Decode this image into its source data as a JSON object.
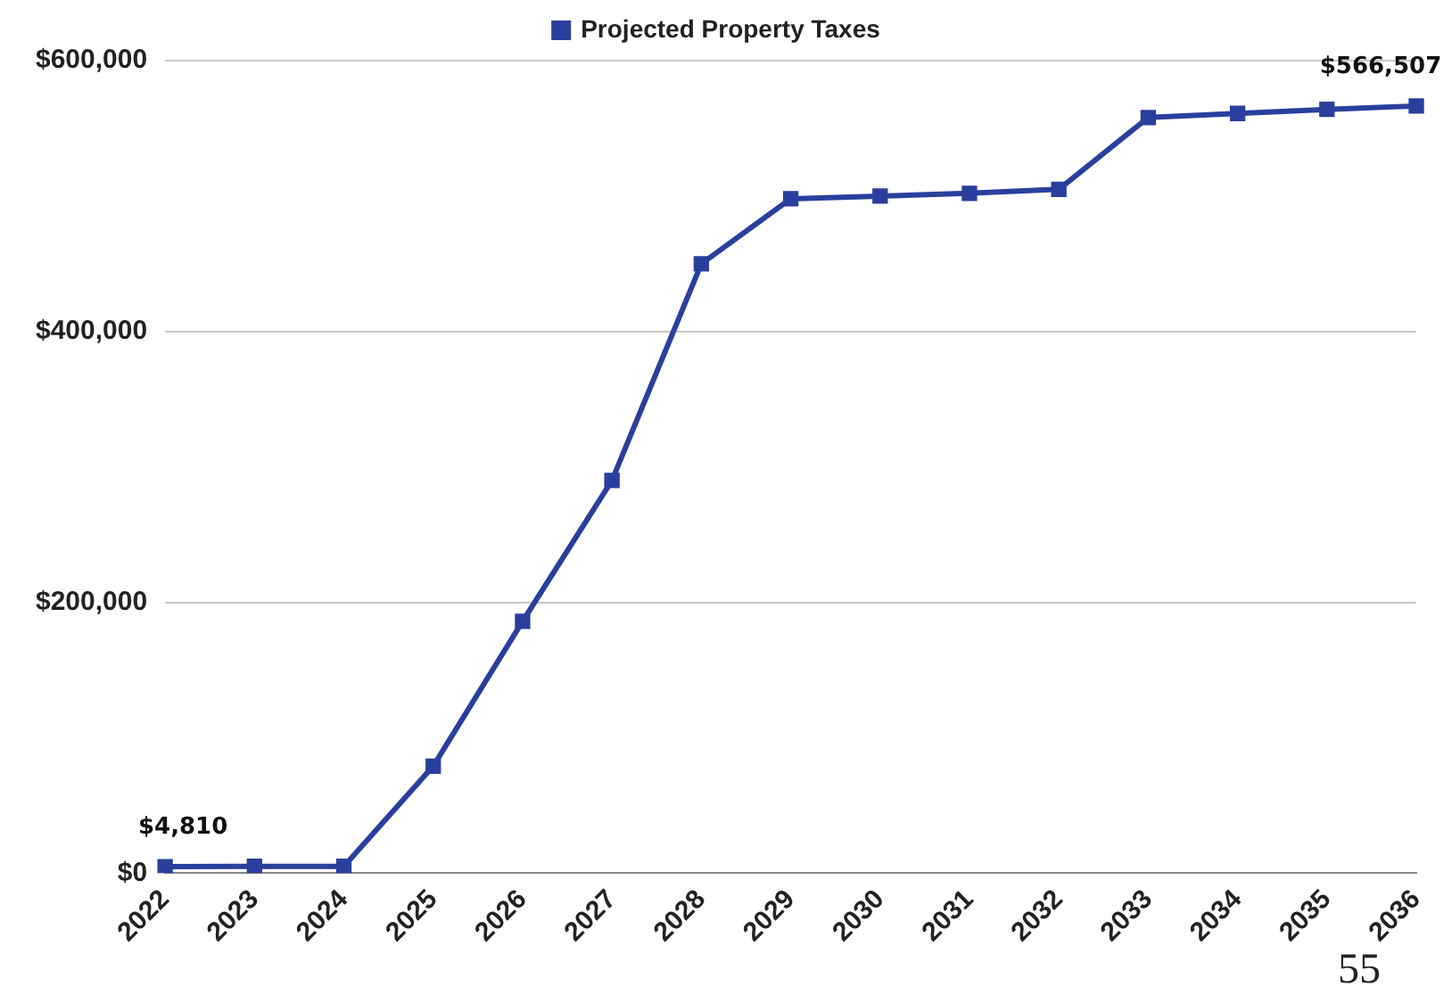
{
  "chart_data": {
    "type": "line",
    "categories": [
      "2022",
      "2023",
      "2024",
      "2025",
      "2026",
      "2027",
      "2028",
      "2029",
      "2030",
      "2031",
      "2032",
      "2033",
      "2034",
      "2035",
      "2036"
    ],
    "series": [
      {
        "name": "Projected Property Taxes",
        "color": "#2a3f9d",
        "values": [
          4810,
          5000,
          5000,
          79000,
          186000,
          290000,
          450000,
          498000,
          500000,
          502000,
          505000,
          558000,
          561000,
          564000,
          566507
        ],
        "value_labels": [
          "$4,810",
          null,
          null,
          null,
          null,
          null,
          null,
          null,
          null,
          null,
          null,
          null,
          null,
          null,
          "$566,507"
        ]
      }
    ],
    "ylim": [
      0,
      600000
    ],
    "yticks": [
      {
        "value": 0,
        "label": "$0"
      },
      {
        "value": 200000,
        "label": "$200,000"
      },
      {
        "value": 400000,
        "label": "$400,000"
      },
      {
        "value": 600000,
        "label": "$600,000"
      }
    ],
    "grid": "y",
    "legend": "top",
    "marker": "square",
    "line_style": "solid",
    "annotations": [
      "55"
    ]
  }
}
